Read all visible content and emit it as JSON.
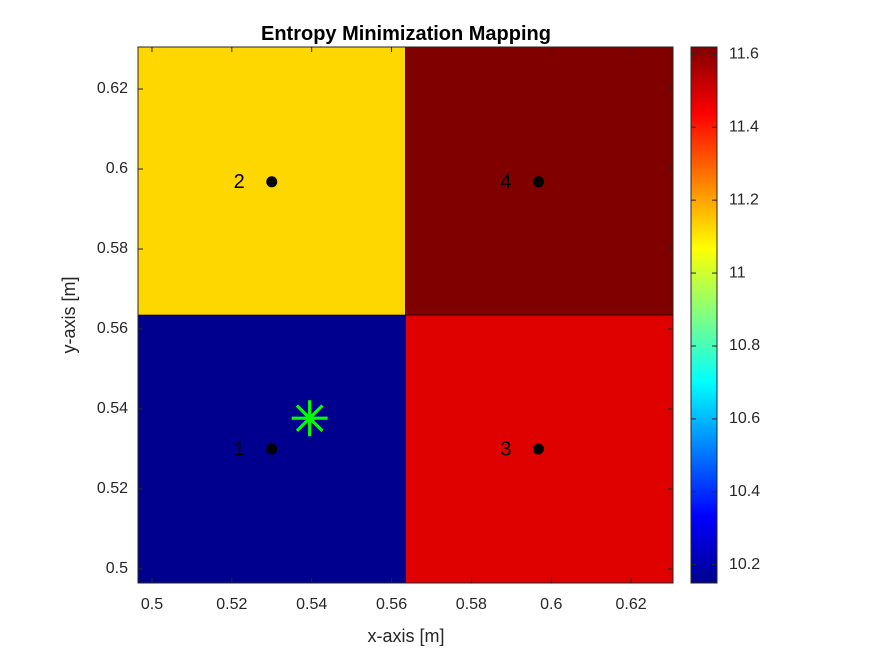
{
  "chart_data": {
    "type": "heatmap",
    "title": "Entropy Minimization Mapping",
    "xlabel": "x-axis [m]",
    "ylabel": "y-axis [m]",
    "xlim": [
      0.4965,
      0.6305
    ],
    "ylim": [
      0.4965,
      0.6305
    ],
    "xticks": [
      0.5,
      0.52,
      0.54,
      0.56,
      0.58,
      0.6,
      0.62
    ],
    "xtick_labels": [
      "0.5",
      "0.52",
      "0.54",
      "0.56",
      "0.58",
      "0.6",
      "0.62"
    ],
    "yticks": [
      0.5,
      0.52,
      0.54,
      0.56,
      0.58,
      0.6,
      0.62
    ],
    "ytick_labels": [
      "0.5",
      "0.52",
      "0.54",
      "0.56",
      "0.58",
      "0.6",
      "0.62"
    ],
    "grid": false,
    "colormap": "jet",
    "clim": [
      10.15,
      11.62
    ],
    "colorbar_ticks": [
      10.2,
      10.4,
      10.6,
      10.8,
      11,
      11.2,
      11.4,
      11.6
    ],
    "colorbar_tick_labels": [
      "10.2",
      "10.4",
      "10.6",
      "10.8",
      "11",
      "11.2",
      "11.4",
      "11.6"
    ],
    "cells": [
      {
        "label": "1",
        "x": [
          0.4965,
          0.5635
        ],
        "y": [
          0.4965,
          0.5635
        ],
        "value": 10.15,
        "color": "#00008f",
        "point": [
          0.53,
          0.53
        ]
      },
      {
        "label": "2",
        "x": [
          0.4965,
          0.5635
        ],
        "y": [
          0.5635,
          0.6305
        ],
        "value": 11.13,
        "color": "#ffd700",
        "point": [
          0.53,
          0.5968
        ]
      },
      {
        "label": "3",
        "x": [
          0.5635,
          0.6305
        ],
        "y": [
          0.4965,
          0.5635
        ],
        "value": 11.45,
        "color": "#df0000",
        "point": [
          0.5968,
          0.53
        ]
      },
      {
        "label": "4",
        "x": [
          0.5635,
          0.6305
        ],
        "y": [
          0.5635,
          0.6305
        ],
        "value": 11.62,
        "color": "#800000",
        "point": [
          0.5968,
          0.5968
        ]
      }
    ],
    "estimate_marker": {
      "x": 0.5395,
      "y": 0.5377,
      "shape": "asterisk",
      "color": "#00ff00"
    }
  }
}
